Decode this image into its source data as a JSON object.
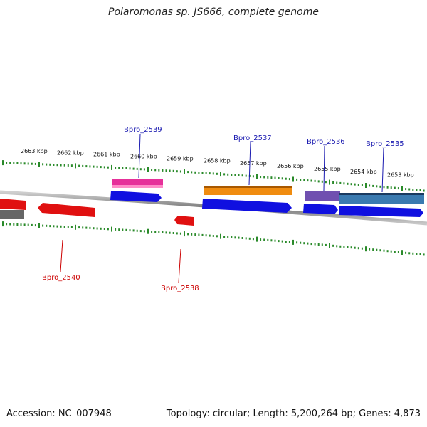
{
  "title": "Polaromonas sp. JS666, complete genome",
  "footer": {
    "accession": "Accession: NC_007948",
    "summary": "Topology: circular; Length: 5,200,264 bp; Genes: 4,873"
  },
  "kbp_labels": [
    "2663 kbp",
    "2662 kbp",
    "2661 kbp",
    "2660 kbp",
    "2659 kbp",
    "2658 kbp",
    "2657 kbp",
    "2656 kbp",
    "2655 kbp",
    "2654 kbp",
    "2653 kbp"
  ],
  "gene_labels": [
    "Bpro_2539",
    "Bpro_2537",
    "Bpro_2536",
    "Bpro_2535",
    "Bpro_2540",
    "Bpro_2538"
  ],
  "colors": {
    "tick": "#2a8a2a",
    "label_top": "#1a1ab0",
    "label_bottom": "#cc0000",
    "blue": "#1010e0",
    "red": "#e01010",
    "pink": "#e6309a",
    "orange": "#f08c10",
    "purple": "#7050b0",
    "steel": "#3a7ab0"
  }
}
